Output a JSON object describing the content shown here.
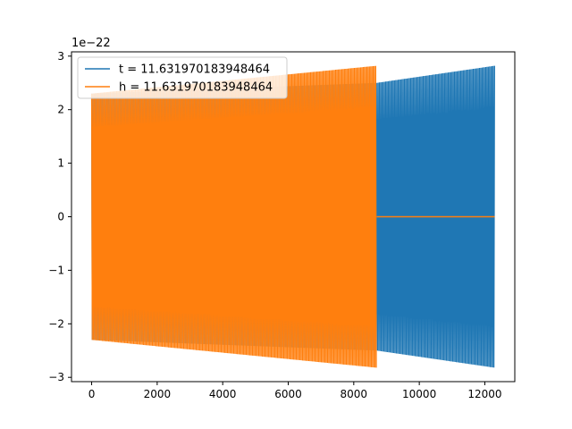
{
  "chart_data": {
    "type": "line",
    "title": "",
    "xlabel": "",
    "ylabel": "",
    "y_scale_label": "1e−22",
    "xlim": [
      -615,
      12915
    ],
    "ylim": [
      -3.08,
      3.08
    ],
    "x_ticks": [
      0,
      2000,
      4000,
      6000,
      8000,
      10000,
      12000
    ],
    "x_tick_labels": [
      "0",
      "2000",
      "4000",
      "6000",
      "8000",
      "10000",
      "12000"
    ],
    "y_ticks": [
      -3,
      -2,
      -1,
      0,
      1,
      2,
      3
    ],
    "y_tick_labels": [
      "−3",
      "−2",
      "−1",
      "0",
      "1",
      "2",
      "3"
    ],
    "grid": false,
    "legend": {
      "placement": "top-left"
    },
    "series": [
      {
        "name": "t = 11.631970183948464",
        "color": "#1f77b4",
        "kind": "oscillation",
        "x_start": 0,
        "x_end": 12300,
        "envelope_x": [
          0,
          8700,
          12300
        ],
        "envelope_upper": [
          2.3,
          2.5,
          2.82
        ],
        "envelope_lower": [
          -2.3,
          -2.5,
          -2.82
        ]
      },
      {
        "name": "h = 11.631970183948464",
        "color": "#ff7f0e",
        "kind": "oscillation",
        "x_start": 0,
        "x_end": 8700,
        "tail_x_end": 12300,
        "tail_value": 0,
        "envelope_x": [
          0,
          8700
        ],
        "envelope_upper": [
          2.3,
          2.82
        ],
        "envelope_lower": [
          -2.3,
          -2.82
        ]
      }
    ]
  }
}
